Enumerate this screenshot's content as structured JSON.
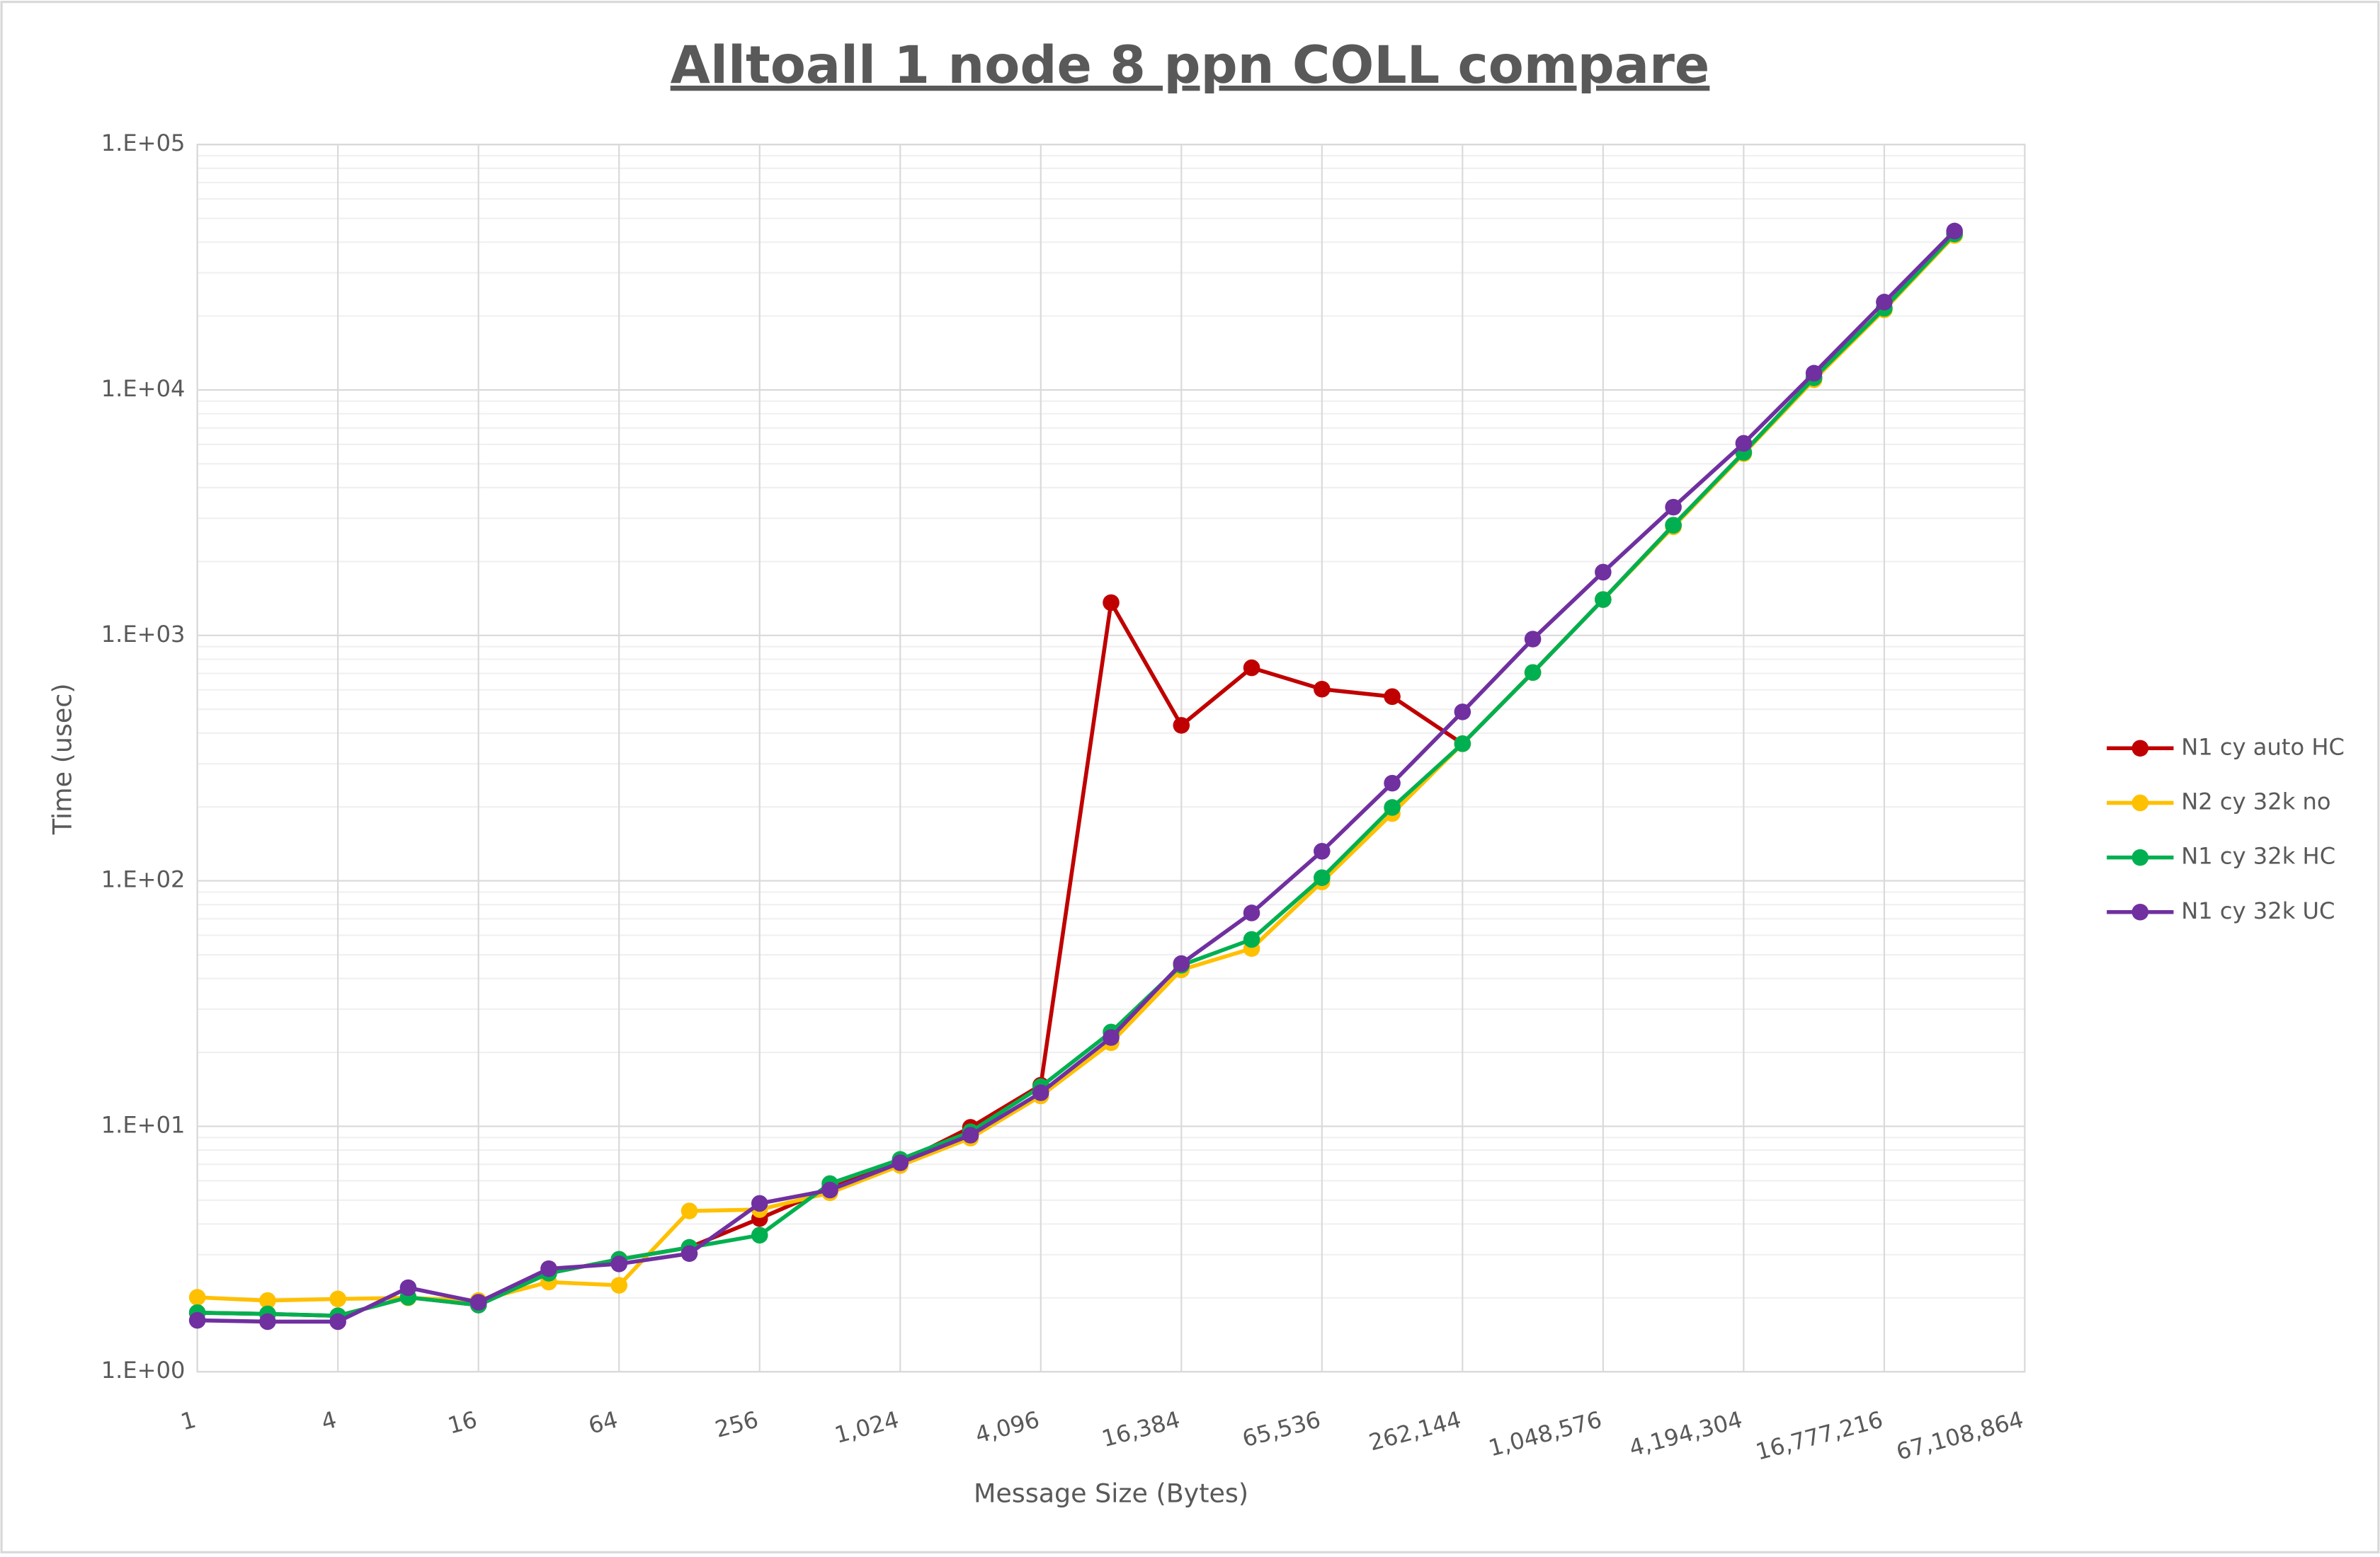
{
  "chart_data": {
    "type": "line",
    "title": "Alltoall 1 node 8 ppn COLL compare",
    "x_label": "Message Size (Bytes)",
    "y_label": "Time (usec)",
    "x": [
      1,
      2,
      4,
      8,
      16,
      32,
      64,
      128,
      256,
      512,
      1024,
      2048,
      4096,
      8192,
      16384,
      32768,
      65536,
      131072,
      262144,
      524288,
      1048576,
      2097152,
      4194304,
      8388608,
      16777216,
      33554432
    ],
    "series": [
      {
        "name": "N1 cy auto HC",
        "color": "#c00000",
        "values": [
          1.74,
          1.72,
          1.69,
          2.01,
          1.87,
          2.52,
          2.87,
          3.21,
          4.21,
          5.6,
          7.1,
          9.9,
          14.7,
          1360,
          430,
          738,
          604,
          563,
          362,
          706,
          1400,
          2810,
          5560,
          11200,
          21500,
          43200
        ]
      },
      {
        "name": "N2 cy 32k no",
        "color": "#ffc000",
        "values": [
          2.01,
          1.95,
          1.98,
          2.0,
          1.95,
          2.32,
          2.25,
          4.52,
          4.58,
          5.36,
          6.92,
          8.95,
          13.3,
          21.9,
          43.4,
          53,
          99,
          188,
          362,
          706,
          1400,
          2770,
          5500,
          11000,
          21200,
          42600
        ]
      },
      {
        "name": "N1 cy 32k HC",
        "color": "#00b050",
        "values": [
          1.74,
          1.72,
          1.69,
          2.01,
          1.87,
          2.52,
          2.87,
          3.21,
          3.6,
          5.84,
          7.33,
          9.5,
          14.5,
          24.2,
          45.3,
          57.7,
          103,
          199,
          362,
          706,
          1400,
          2810,
          5560,
          11200,
          21500,
          43200
        ]
      },
      {
        "name": "N1 cy 32k UC",
        "color": "#7030a0",
        "values": [
          1.62,
          1.6,
          1.6,
          2.2,
          1.92,
          2.63,
          2.75,
          3.03,
          4.85,
          5.5,
          7.1,
          9.2,
          13.7,
          23,
          46,
          74,
          132,
          250,
          488,
          966,
          1810,
          3330,
          6060,
          11700,
          22800,
          44400
        ]
      }
    ],
    "x_log_base": 2,
    "y_log_base": 10,
    "xlim": [
      1,
      67108864
    ],
    "ylim": [
      1,
      100000
    ],
    "xticks": [
      1,
      4,
      16,
      64,
      256,
      {
        "value": 1024,
        "label": "1,024"
      },
      {
        "value": 4096,
        "label": "4,096"
      },
      {
        "value": 16384,
        "label": "16,384"
      },
      {
        "value": 65536,
        "label": "65,536"
      },
      {
        "value": 262144,
        "label": "262,144"
      },
      {
        "value": 1048576,
        "label": "1,048,576"
      },
      {
        "value": 4194304,
        "label": "4,194,304"
      },
      {
        "value": 16777216,
        "label": "16,777,216"
      },
      {
        "value": 67108864,
        "label": "67,108,864"
      }
    ],
    "yticks": [
      {
        "value": 1,
        "label": "1.E+00"
      },
      {
        "value": 10,
        "label": "1.E+01"
      },
      {
        "value": 100,
        "label": "1.E+02"
      },
      {
        "value": 1000,
        "label": "1.E+03"
      },
      {
        "value": 10000,
        "label": "1.E+04"
      },
      {
        "value": 100000,
        "label": "1.E+05"
      }
    ],
    "grid": true,
    "minor_grid": true,
    "legend": "right"
  }
}
